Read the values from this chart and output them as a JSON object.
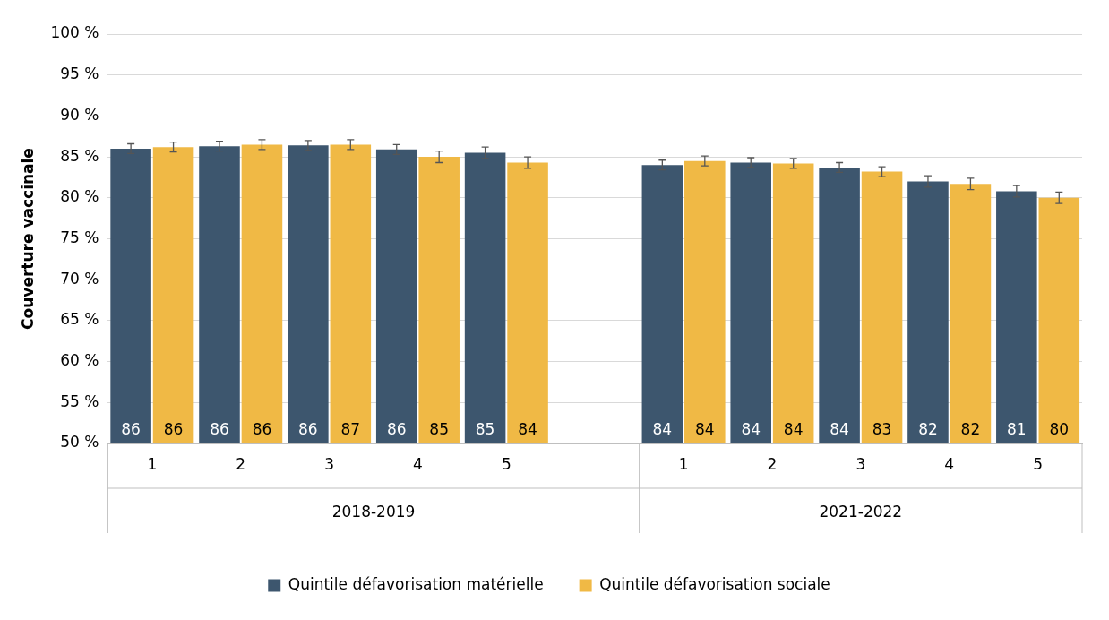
{
  "chart_data": {
    "type": "bar",
    "ylabel": "Couverture vaccinale",
    "categories": [
      "1",
      "2",
      "3",
      "4",
      "5",
      null,
      "1",
      "2",
      "3",
      "4",
      "5"
    ],
    "series": [
      {
        "name": "Quintile défavorisation matérielle",
        "color": "#3d566e",
        "values": [
          86.0,
          86.3,
          86.4,
          85.9,
          85.5,
          null,
          84.0,
          84.3,
          83.7,
          82.0,
          80.8
        ],
        "errors": [
          0.6,
          0.6,
          0.6,
          0.6,
          0.7,
          null,
          0.6,
          0.6,
          0.6,
          0.7,
          0.7
        ],
        "value_labels": [
          "86",
          "86",
          "86",
          "86",
          "85",
          null,
          "84",
          "84",
          "84",
          "82",
          "81"
        ]
      },
      {
        "name": "Quintile défavorisation sociale",
        "color": "#f0b945",
        "values": [
          86.2,
          86.5,
          86.5,
          85.0,
          84.3,
          null,
          84.5,
          84.2,
          83.2,
          81.7,
          80.0
        ],
        "errors": [
          0.6,
          0.6,
          0.6,
          0.7,
          0.7,
          null,
          0.6,
          0.6,
          0.6,
          0.7,
          0.7
        ],
        "value_labels": [
          "86",
          "86",
          "87",
          "85",
          "84",
          null,
          "84",
          "84",
          "83",
          "82",
          "80"
        ]
      }
    ],
    "ylim": [
      50,
      100
    ],
    "yticks": [
      {
        "value": 50,
        "label": "50 %"
      },
      {
        "value": 55,
        "label": "55 %"
      },
      {
        "value": 60,
        "label": "60 %"
      },
      {
        "value": 65,
        "label": "65 %"
      },
      {
        "value": 70,
        "label": "70 %"
      },
      {
        "value": 75,
        "label": "75 %"
      },
      {
        "value": 80,
        "label": "80 %"
      },
      {
        "value": 85,
        "label": "85 %"
      },
      {
        "value": 90,
        "label": "90 %"
      },
      {
        "value": 95,
        "label": "95 %"
      },
      {
        "value": 100,
        "label": "100 %"
      }
    ],
    "grid": "y",
    "legend": "bottom",
    "annotations": [
      "2018-2019",
      "2021-2022"
    ]
  }
}
